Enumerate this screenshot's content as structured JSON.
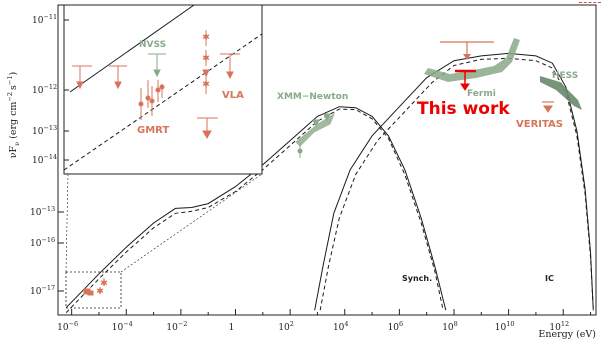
{
  "axes": {
    "x_label": "Energy (eV)",
    "y_label_main": "νF",
    "y_label_sub": "ν",
    "y_label_units": "(erg cm",
    "y_label_units2": "s",
    "y_label_close": ")",
    "x_ticks": [
      {
        "base": "10",
        "exp": "−6"
      },
      {
        "base": "10",
        "exp": "−4"
      },
      {
        "base": "10",
        "exp": "−2"
      },
      {
        "base": "1",
        "exp": ""
      },
      {
        "base": "10",
        "exp": "2"
      },
      {
        "base": "10",
        "exp": "4"
      },
      {
        "base": "10",
        "exp": "6"
      },
      {
        "base": "10",
        "exp": "8"
      },
      {
        "base": "10",
        "exp": "10"
      },
      {
        "base": "10",
        "exp": "12"
      }
    ],
    "y_ticks": [
      {
        "base": "10",
        "exp": "−11"
      },
      {
        "base": "10",
        "exp": "−12"
      },
      {
        "base": "10",
        "exp": "−13"
      },
      {
        "base": "10",
        "exp": "−14"
      },
      {
        "base": "10",
        "exp": "−15"
      },
      {
        "base": "10",
        "exp": "−16"
      },
      {
        "base": "10",
        "exp": "−17"
      }
    ]
  },
  "labels": {
    "synch": "Synch.",
    "ic": "IC",
    "xmm": "XMM−Newton",
    "fermi": "Fermi",
    "hess": "HESS",
    "veritas": "VERITAS",
    "this_work": "This work",
    "nvss": "NVSS",
    "gmrt": "GMRT",
    "vla": "VLA"
  },
  "colors": {
    "model_line": "#1a1a1a",
    "instrument_green": "#8aa88a",
    "data_orange": "#d9745a",
    "this_work_red": "#ee0000"
  },
  "chart_data": {
    "type": "line",
    "x_scale": "log",
    "y_scale": "log",
    "xlabel": "Energy (eV)",
    "ylabel": "νFν (erg cm−2 s−1)",
    "xlim_log10": [
      -6.5,
      13.2
    ],
    "ylim_log10": [
      -17.6,
      -11.2
    ],
    "series": [
      {
        "name": "Synch.",
        "style": "solid",
        "points_log10": [
          [
            -6.2,
            -17.45
          ],
          [
            -5,
            -16.75
          ],
          [
            -4,
            -16.2
          ],
          [
            -3,
            -15.7
          ],
          [
            -2.2,
            -15.4
          ],
          [
            -1.6,
            -15.38
          ],
          [
            -1,
            -15.3
          ],
          [
            0,
            -14.95
          ],
          [
            1,
            -14.5
          ],
          [
            2,
            -14.0
          ],
          [
            3,
            -13.5
          ],
          [
            3.8,
            -13.3
          ],
          [
            4.4,
            -13.32
          ],
          [
            5,
            -13.5
          ],
          [
            5.6,
            -13.9
          ],
          [
            6.2,
            -14.6
          ],
          [
            6.8,
            -15.6
          ],
          [
            7.3,
            -16.6
          ],
          [
            7.7,
            -17.5
          ]
        ]
      },
      {
        "name": "",
        "style": "dashed",
        "points_log10": [
          [
            -6.2,
            -17.55
          ],
          [
            -5,
            -16.85
          ],
          [
            -4,
            -16.3
          ],
          [
            -3,
            -15.8
          ],
          [
            -2.2,
            -15.5
          ],
          [
            -1.6,
            -15.46
          ],
          [
            -1,
            -15.38
          ],
          [
            0,
            -15.05
          ],
          [
            1,
            -14.6
          ],
          [
            2,
            -14.1
          ],
          [
            3,
            -13.6
          ],
          [
            3.8,
            -13.35
          ],
          [
            4.4,
            -13.36
          ],
          [
            5,
            -13.55
          ],
          [
            5.6,
            -13.95
          ],
          [
            6.2,
            -14.7
          ],
          [
            6.8,
            -15.7
          ],
          [
            7.3,
            -16.7
          ],
          [
            7.6,
            -17.5
          ]
        ]
      },
      {
        "name": "IC",
        "style": "solid",
        "points_log10": [
          [
            2.9,
            -17.5
          ],
          [
            3.2,
            -16.6
          ],
          [
            3.6,
            -15.5
          ],
          [
            4.2,
            -14.6
          ],
          [
            5,
            -13.9
          ],
          [
            6,
            -13.3
          ],
          [
            7,
            -12.7
          ],
          [
            8,
            -12.35
          ],
          [
            9,
            -12.25
          ],
          [
            10,
            -12.2
          ],
          [
            11,
            -12.25
          ],
          [
            11.6,
            -12.4
          ],
          [
            12.1,
            -12.9
          ],
          [
            12.5,
            -13.8
          ],
          [
            12.8,
            -15.0
          ],
          [
            13.0,
            -16.3
          ],
          [
            13.1,
            -17.5
          ]
        ]
      },
      {
        "name": "",
        "style": "dashed",
        "points_log10": [
          [
            3.1,
            -17.5
          ],
          [
            3.4,
            -16.6
          ],
          [
            3.8,
            -15.6
          ],
          [
            4.4,
            -14.7
          ],
          [
            5.2,
            -14.0
          ],
          [
            6.2,
            -13.4
          ],
          [
            7.2,
            -12.8
          ],
          [
            8,
            -12.45
          ],
          [
            9,
            -12.32
          ],
          [
            10,
            -12.3
          ],
          [
            11,
            -12.35
          ],
          [
            11.6,
            -12.5
          ],
          [
            12.1,
            -13.0
          ],
          [
            12.5,
            -13.9
          ],
          [
            12.8,
            -15.1
          ],
          [
            13.0,
            -16.4
          ],
          [
            13.1,
            -17.5
          ]
        ]
      }
    ],
    "annotations": [
      "Synch.",
      "IC",
      "XMM−Newton",
      "Fermi",
      "HESS",
      "VERITAS",
      "This work"
    ],
    "inset": {
      "labels": [
        "NVSS",
        "GMRT",
        "VLA"
      ],
      "note": "zoom of radio region, log axes"
    }
  }
}
